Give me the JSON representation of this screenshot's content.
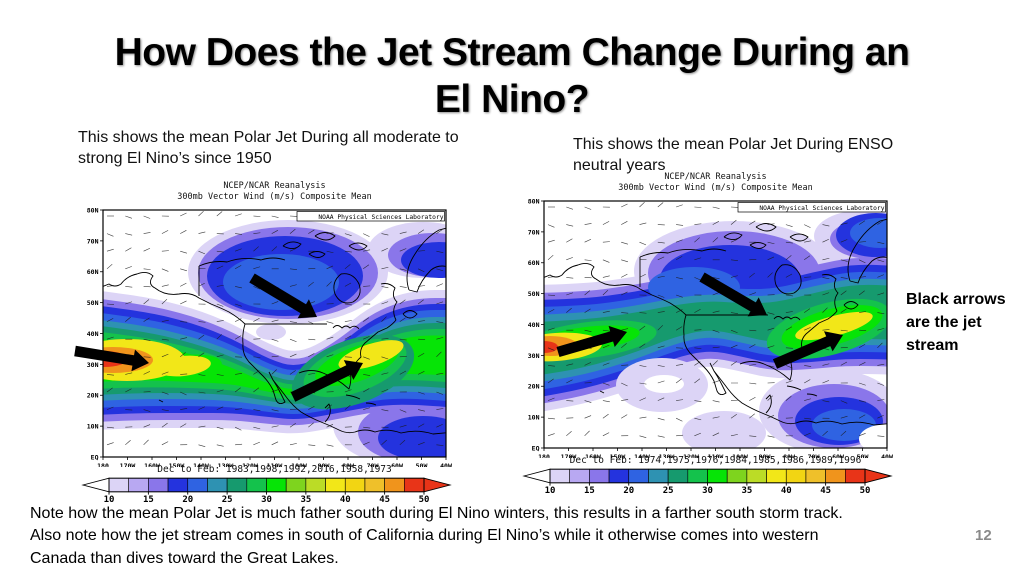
{
  "slide": {
    "title_line1": "How Does the Jet Stream Change During an",
    "title_line2": "El Nino?",
    "annotation": "Black arrows are the jet stream",
    "note_lines": [
      "Note how the mean Polar Jet is much father south during El Nino winters, this results in a farther south storm track.",
      "Also note how the jet stream comes in south of California during El Nino’s while it otherwise comes into western",
      "Canada than dives toward the Great Lakes."
    ],
    "page_number": "12"
  },
  "maps": [
    {
      "caption": "This shows the mean Polar Jet During all moderate to strong El Nino’s since 1950",
      "header_line1": "NCEP/NCAR Reanalysis",
      "header_line2": "300mb Vector Wind (m/s) Composite Mean",
      "source_label": "NOAA Physical Sciences Laboratory",
      "date_label": "Dec to Feb: 1983,1998,1992,2016,1958,1973"
    },
    {
      "caption": "This shows the mean Polar Jet During ENSO neutral years",
      "header_line1": "NCEP/NCAR Reanalysis",
      "header_line2": "300mb Vector Wind (m/s) Composite Mean",
      "source_label": "NOAA Physical Sciences Laboratory",
      "date_label": "Dec to Feb: 1974,1975,1976,1984,1985,1986,1989,1996"
    }
  ],
  "axes": {
    "lat": [
      "EQ",
      "10N",
      "20N",
      "30N",
      "40N",
      "50N",
      "60N",
      "70N",
      "80N"
    ],
    "lon": [
      "180",
      "170W",
      "160W",
      "150W",
      "140W",
      "130W",
      "120W",
      "110W",
      "100W",
      "90W",
      "80W",
      "70W",
      "60W",
      "50W",
      "40W"
    ]
  },
  "legend": {
    "values": [
      "10",
      "15",
      "20",
      "25",
      "30",
      "35",
      "40",
      "45",
      "50"
    ],
    "colors": [
      "#DCD4F6",
      "#B8A8F2",
      "#8A76EA",
      "#2433DE",
      "#2F63E2",
      "#2E92B2",
      "#169A6E",
      "#14C24C",
      "#06E406",
      "#7ED41E",
      "#BBDC26",
      "#F2E718",
      "#F2D513",
      "#EFC02A",
      "#F0941C",
      "#E83418"
    ]
  },
  "chart_data": [
    {
      "type": "map-contour",
      "title": "NCEP/NCAR Reanalysis",
      "subtitle": "300mb Vector Wind (m/s) Composite Mean",
      "season": "Dec to Feb",
      "composite_years": [
        1983,
        1998,
        1992,
        2016,
        1958,
        1973
      ],
      "units": "m/s",
      "scale_values": [
        10,
        15,
        20,
        25,
        30,
        35,
        40,
        45,
        50
      ],
      "lat_range": [
        "EQ",
        "80N"
      ],
      "lon_range": [
        "180",
        "40W"
      ],
      "jet_description": "Jet maximum (red/orange, ~50 m/s) enters the eastern Pacific near 30-35N, dips south of California/Mexico, with a secondary green-yellow maximum over the southeastern US and western Atlantic; strong blue secondary flow over central Canada."
    },
    {
      "type": "map-contour",
      "title": "NCEP/NCAR Reanalysis",
      "subtitle": "300mb Vector Wind (m/s) Composite Mean",
      "season": "Dec to Feb",
      "composite_years": [
        1974,
        1975,
        1976,
        1984,
        1985,
        1986,
        1989,
        1996
      ],
      "units": "m/s",
      "scale_values": [
        10,
        15,
        20,
        25,
        30,
        35,
        40,
        45,
        50
      ],
      "lat_range": [
        "EQ",
        "80N"
      ],
      "lon_range": [
        "180",
        "40W"
      ],
      "jet_description": "Jet maximum enters the central Pacific near 35-40N angling northeast into western Canada, then dives southeast toward the Great Lakes with a yellow maximum over the northeastern US/Atlantic near 40-45N."
    }
  ]
}
